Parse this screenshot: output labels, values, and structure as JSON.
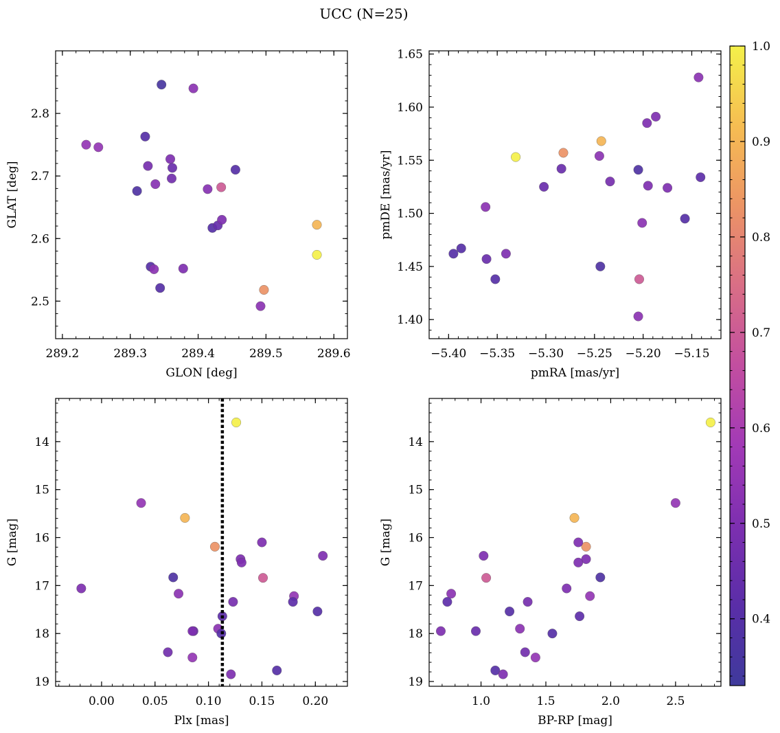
{
  "figure": {
    "title": "UCC (N=25)"
  },
  "colorbar": {
    "range": [
      0.33,
      1.0
    ],
    "ticks": [
      0.4,
      0.5,
      0.6,
      0.7,
      0.8,
      0.9,
      1.0
    ],
    "tick_labels": [
      "0.4",
      "0.5",
      "0.6",
      "0.7",
      "0.8",
      "0.9",
      "1.0"
    ],
    "colormap": "plasma",
    "colormap_stops": [
      "#3f3a9c",
      "#5a2ea8",
      "#7d2fb0",
      "#a23ab6",
      "#c24ea0",
      "#d96e86",
      "#ec9465",
      "#f6bd52",
      "#f4f04a"
    ]
  },
  "chart_data": [
    {
      "type": "scatter",
      "xlabel": "GLON [deg]",
      "ylabel": "GLAT [deg]",
      "xlim": [
        289.19,
        289.62
      ],
      "ylim": [
        2.44,
        2.9
      ],
      "xticks": [
        289.2,
        289.3,
        289.4,
        289.5,
        289.6
      ],
      "xtick_labels": [
        "289.2",
        "289.3",
        "289.4",
        "289.5",
        "289.6"
      ],
      "yticks": [
        2.5,
        2.6,
        2.7,
        2.8
      ],
      "ytick_labels": [
        "2.5",
        "2.6",
        "2.7",
        "2.8"
      ],
      "points": [
        {
          "x": 289.235,
          "y": 2.75,
          "c": 0.55
        },
        {
          "x": 289.253,
          "y": 2.746,
          "c": 0.55
        },
        {
          "x": 289.346,
          "y": 2.846,
          "c": 0.36
        },
        {
          "x": 289.393,
          "y": 2.84,
          "c": 0.53
        },
        {
          "x": 289.322,
          "y": 2.763,
          "c": 0.4
        },
        {
          "x": 289.326,
          "y": 2.716,
          "c": 0.48
        },
        {
          "x": 289.359,
          "y": 2.727,
          "c": 0.5
        },
        {
          "x": 289.362,
          "y": 2.713,
          "c": 0.45
        },
        {
          "x": 289.361,
          "y": 2.696,
          "c": 0.47
        },
        {
          "x": 289.337,
          "y": 2.687,
          "c": 0.52
        },
        {
          "x": 289.31,
          "y": 2.676,
          "c": 0.38
        },
        {
          "x": 289.414,
          "y": 2.679,
          "c": 0.52
        },
        {
          "x": 289.434,
          "y": 2.682,
          "c": 0.7
        },
        {
          "x": 289.455,
          "y": 2.71,
          "c": 0.4
        },
        {
          "x": 289.421,
          "y": 2.617,
          "c": 0.4
        },
        {
          "x": 289.429,
          "y": 2.621,
          "c": 0.44
        },
        {
          "x": 289.435,
          "y": 2.63,
          "c": 0.5
        },
        {
          "x": 289.33,
          "y": 2.555,
          "c": 0.4
        },
        {
          "x": 289.335,
          "y": 2.551,
          "c": 0.53
        },
        {
          "x": 289.378,
          "y": 2.552,
          "c": 0.5
        },
        {
          "x": 289.344,
          "y": 2.521,
          "c": 0.4
        },
        {
          "x": 289.575,
          "y": 2.622,
          "c": 0.9
        },
        {
          "x": 289.575,
          "y": 2.574,
          "c": 1.0
        },
        {
          "x": 289.497,
          "y": 2.518,
          "c": 0.83
        },
        {
          "x": 289.492,
          "y": 2.492,
          "c": 0.53
        }
      ]
    },
    {
      "type": "scatter",
      "xlabel": "pmRA [mas/yr]",
      "ylabel": "pmDE [mas/yr]",
      "xlim": [
        -5.42,
        -5.12
      ],
      "ylim": [
        1.382,
        1.653
      ],
      "xticks": [
        -5.4,
        -5.35,
        -5.3,
        -5.25,
        -5.2,
        -5.15
      ],
      "xtick_labels": [
        "−5.40",
        "−5.35",
        "−5.30",
        "−5.25",
        "−5.20",
        "−5.15"
      ],
      "yticks": [
        1.4,
        1.45,
        1.5,
        1.55,
        1.6,
        1.65
      ],
      "ytick_labels": [
        "1.40",
        "1.45",
        "1.50",
        "1.55",
        "1.60",
        "1.65"
      ],
      "points": [
        {
          "x": -5.143,
          "y": 1.628,
          "c": 0.53
        },
        {
          "x": -5.187,
          "y": 1.591,
          "c": 0.5
        },
        {
          "x": -5.196,
          "y": 1.585,
          "c": 0.5
        },
        {
          "x": -5.243,
          "y": 1.568,
          "c": 0.9
        },
        {
          "x": -5.282,
          "y": 1.557,
          "c": 0.83
        },
        {
          "x": -5.331,
          "y": 1.553,
          "c": 1.0
        },
        {
          "x": -5.245,
          "y": 1.554,
          "c": 0.53
        },
        {
          "x": -5.284,
          "y": 1.542,
          "c": 0.45
        },
        {
          "x": -5.205,
          "y": 1.541,
          "c": 0.38
        },
        {
          "x": -5.141,
          "y": 1.534,
          "c": 0.42
        },
        {
          "x": -5.234,
          "y": 1.53,
          "c": 0.48
        },
        {
          "x": -5.195,
          "y": 1.526,
          "c": 0.5
        },
        {
          "x": -5.302,
          "y": 1.525,
          "c": 0.45
        },
        {
          "x": -5.175,
          "y": 1.524,
          "c": 0.5
        },
        {
          "x": -5.362,
          "y": 1.506,
          "c": 0.53
        },
        {
          "x": -5.157,
          "y": 1.495,
          "c": 0.4
        },
        {
          "x": -5.201,
          "y": 1.491,
          "c": 0.53
        },
        {
          "x": -5.387,
          "y": 1.467,
          "c": 0.4
        },
        {
          "x": -5.395,
          "y": 1.462,
          "c": 0.4
        },
        {
          "x": -5.341,
          "y": 1.462,
          "c": 0.5
        },
        {
          "x": -5.361,
          "y": 1.457,
          "c": 0.45
        },
        {
          "x": -5.244,
          "y": 1.45,
          "c": 0.38
        },
        {
          "x": -5.352,
          "y": 1.438,
          "c": 0.4
        },
        {
          "x": -5.204,
          "y": 1.438,
          "c": 0.7
        },
        {
          "x": -5.205,
          "y": 1.403,
          "c": 0.53
        }
      ]
    },
    {
      "type": "scatter",
      "xlabel": "Plx [mas]",
      "ylabel": "G [mag]",
      "xlim": [
        -0.043,
        0.23
      ],
      "ylim": [
        19.1,
        13.1
      ],
      "y_inverted": true,
      "vline": {
        "x": 0.113,
        "style": "dotted"
      },
      "xticks": [
        0.0,
        0.05,
        0.1,
        0.15,
        0.2
      ],
      "xtick_labels": [
        "0.00",
        "0.05",
        "0.10",
        "0.15",
        "0.20"
      ],
      "yticks": [
        14,
        15,
        16,
        17,
        18,
        19
      ],
      "ytick_labels": [
        "14",
        "15",
        "16",
        "17",
        "18",
        "19"
      ],
      "points": [
        {
          "x": 0.126,
          "y": 13.6,
          "c": 1.0
        },
        {
          "x": 0.037,
          "y": 15.28,
          "c": 0.55
        },
        {
          "x": 0.078,
          "y": 15.59,
          "c": 0.9
        },
        {
          "x": 0.106,
          "y": 16.19,
          "c": 0.83
        },
        {
          "x": 0.15,
          "y": 16.1,
          "c": 0.5
        },
        {
          "x": 0.207,
          "y": 16.38,
          "c": 0.5
        },
        {
          "x": 0.13,
          "y": 16.45,
          "c": 0.5
        },
        {
          "x": 0.131,
          "y": 16.52,
          "c": 0.5
        },
        {
          "x": 0.067,
          "y": 16.83,
          "c": 0.38
        },
        {
          "x": 0.151,
          "y": 16.84,
          "c": 0.7
        },
        {
          "x": -0.019,
          "y": 17.06,
          "c": 0.5
        },
        {
          "x": 0.072,
          "y": 17.17,
          "c": 0.53
        },
        {
          "x": 0.18,
          "y": 17.22,
          "c": 0.55
        },
        {
          "x": 0.123,
          "y": 17.34,
          "c": 0.48
        },
        {
          "x": 0.179,
          "y": 17.34,
          "c": 0.42
        },
        {
          "x": 0.113,
          "y": 17.64,
          "c": 0.42
        },
        {
          "x": 0.202,
          "y": 17.54,
          "c": 0.4
        },
        {
          "x": 0.086,
          "y": 17.95,
          "c": 0.45
        },
        {
          "x": 0.085,
          "y": 17.95,
          "c": 0.5
        },
        {
          "x": 0.109,
          "y": 17.9,
          "c": 0.53
        },
        {
          "x": 0.112,
          "y": 18.0,
          "c": 0.4
        },
        {
          "x": 0.062,
          "y": 18.39,
          "c": 0.47
        },
        {
          "x": 0.085,
          "y": 18.5,
          "c": 0.55
        },
        {
          "x": 0.164,
          "y": 18.77,
          "c": 0.4
        },
        {
          "x": 0.121,
          "y": 18.85,
          "c": 0.5
        }
      ]
    },
    {
      "type": "scatter",
      "xlabel": "BP-RP [mag]",
      "ylabel": "G [mag]",
      "xlim": [
        0.6,
        2.85
      ],
      "ylim": [
        19.1,
        13.1
      ],
      "y_inverted": true,
      "xticks": [
        1.0,
        1.5,
        2.0,
        2.5
      ],
      "xtick_labels": [
        "1.0",
        "1.5",
        "2.0",
        "2.5"
      ],
      "yticks": [
        14,
        15,
        16,
        17,
        18,
        19
      ],
      "ytick_labels": [
        "14",
        "15",
        "16",
        "17",
        "18",
        "19"
      ],
      "points": [
        {
          "x": 2.77,
          "y": 13.6,
          "c": 1.0
        },
        {
          "x": 2.5,
          "y": 15.28,
          "c": 0.55
        },
        {
          "x": 1.72,
          "y": 15.59,
          "c": 0.9
        },
        {
          "x": 1.81,
          "y": 16.19,
          "c": 0.83
        },
        {
          "x": 1.75,
          "y": 16.1,
          "c": 0.5
        },
        {
          "x": 1.02,
          "y": 16.38,
          "c": 0.5
        },
        {
          "x": 1.81,
          "y": 16.45,
          "c": 0.5
        },
        {
          "x": 1.75,
          "y": 16.52,
          "c": 0.5
        },
        {
          "x": 1.92,
          "y": 16.83,
          "c": 0.38
        },
        {
          "x": 1.04,
          "y": 16.84,
          "c": 0.7
        },
        {
          "x": 1.66,
          "y": 17.06,
          "c": 0.5
        },
        {
          "x": 0.77,
          "y": 17.17,
          "c": 0.53
        },
        {
          "x": 1.84,
          "y": 17.22,
          "c": 0.55
        },
        {
          "x": 1.36,
          "y": 17.34,
          "c": 0.48
        },
        {
          "x": 0.74,
          "y": 17.34,
          "c": 0.42
        },
        {
          "x": 1.76,
          "y": 17.64,
          "c": 0.42
        },
        {
          "x": 1.22,
          "y": 17.54,
          "c": 0.4
        },
        {
          "x": 0.96,
          "y": 17.95,
          "c": 0.45
        },
        {
          "x": 0.69,
          "y": 17.95,
          "c": 0.5
        },
        {
          "x": 1.3,
          "y": 17.9,
          "c": 0.53
        },
        {
          "x": 1.55,
          "y": 18.0,
          "c": 0.4
        },
        {
          "x": 1.34,
          "y": 18.39,
          "c": 0.47
        },
        {
          "x": 1.42,
          "y": 18.5,
          "c": 0.55
        },
        {
          "x": 1.11,
          "y": 18.77,
          "c": 0.4
        },
        {
          "x": 1.17,
          "y": 18.85,
          "c": 0.5
        }
      ]
    }
  ]
}
